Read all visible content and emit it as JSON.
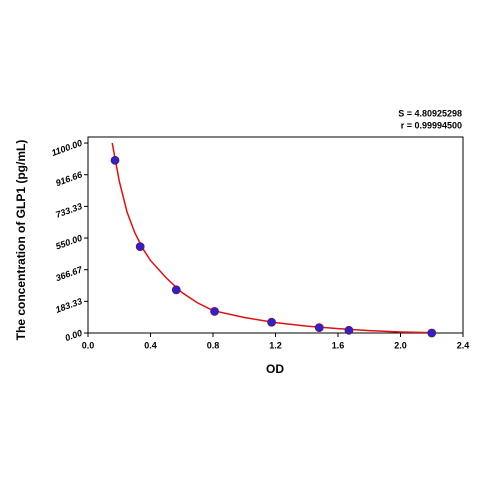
{
  "chart_data": {
    "type": "scatter",
    "x_label": "OD",
    "y_label": "The concentration of GLP1 (pg/mL)",
    "annotations": [
      "S = 4.80925298",
      "r = 0.99994500"
    ],
    "x": [
      0.173,
      0.334,
      0.565,
      0.81,
      1.175,
      1.48,
      1.67,
      2.2
    ],
    "values": [
      1000,
      500,
      250,
      125,
      62.5,
      31.25,
      15.6,
      0
    ],
    "color": "#2b22d6",
    "curve": {
      "color": "#e01010",
      "x": [
        0.155,
        0.2,
        0.25,
        0.3,
        0.35,
        0.4,
        0.5,
        0.6,
        0.7,
        0.8,
        1.0,
        1.2,
        1.4,
        1.6,
        1.8,
        2.0,
        2.2
      ],
      "values": [
        1100,
        880,
        700,
        580,
        490,
        420,
        320,
        235,
        175,
        130,
        90,
        60,
        40,
        25,
        14,
        6,
        2
      ]
    },
    "xlim": [
      0,
      2.4
    ],
    "ylim": [
      0,
      1135
    ],
    "xticks": [
      {
        "value": 0,
        "label": "0.0"
      },
      0.4,
      0.8,
      1.2,
      1.6,
      {
        "value": 2,
        "label": "2.0"
      },
      2.4
    ],
    "yticks": [
      {
        "value": 0,
        "label": "0.00"
      },
      {
        "value": 183.33,
        "label": "183.33"
      },
      {
        "value": 366.67,
        "label": "366.67"
      },
      {
        "value": 550,
        "label": "550.00"
      },
      {
        "value": 733.33,
        "label": "733.33"
      },
      {
        "value": 916.66,
        "label": "916.66"
      },
      {
        "value": 1100,
        "label": "1100.00"
      }
    ]
  }
}
